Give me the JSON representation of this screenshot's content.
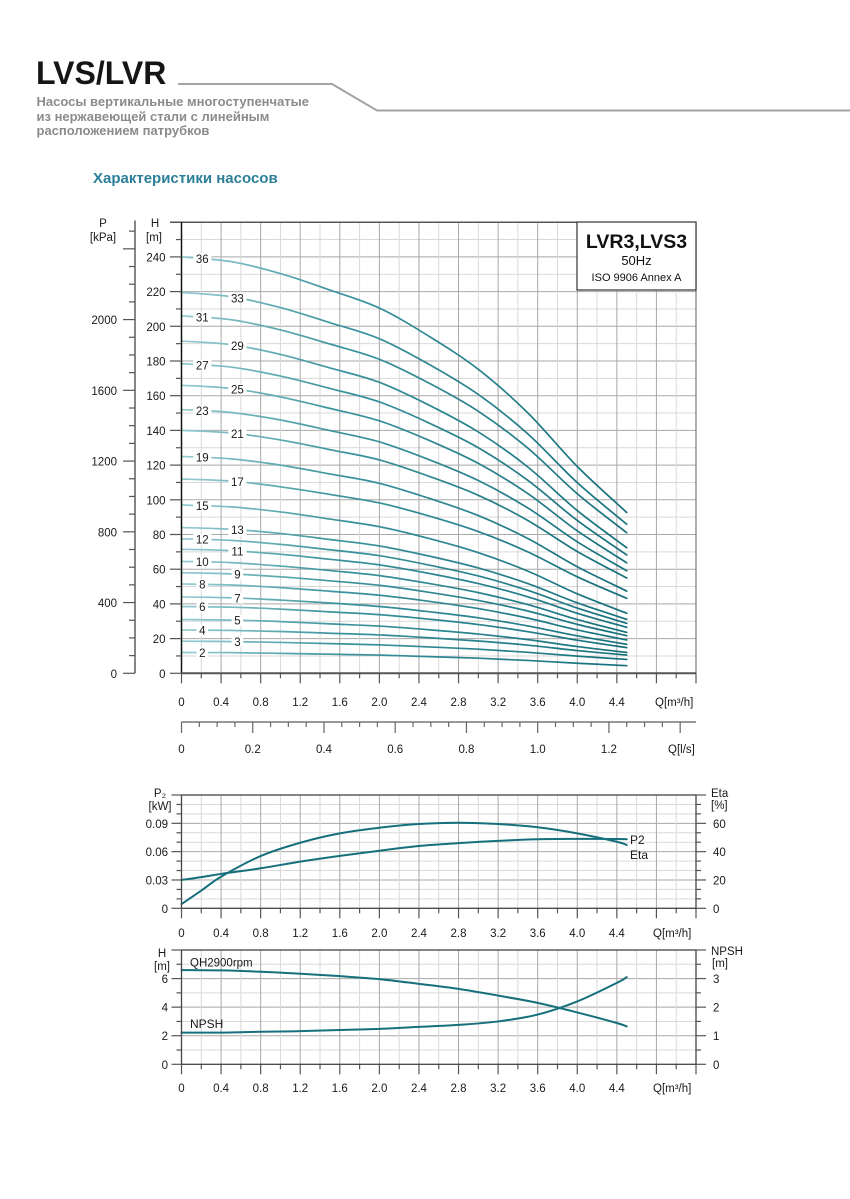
{
  "header": {
    "brand": "LVS/LVR",
    "subtitle_lines": [
      "Насосы вертикальные многоступенчатые",
      "из нержавеющей стали с линейным",
      "расположением патрубков"
    ],
    "section_title": "Характеристики насосов"
  },
  "colors": {
    "curve": "#16707c",
    "curve_mid": "#3c939d",
    "curve_light": "#95ccd2",
    "grid_major": "#a8a8a8",
    "grid_minor": "#d9d9d9",
    "section_title": "#2b7f98",
    "subtitle": "#8b8b8b",
    "header_rule": "#a3a3a3"
  },
  "chart_data": [
    {
      "type": "line",
      "title": "LVR3,LVS3",
      "frequency": "50Hz",
      "standard": "ISO 9906 Annex A",
      "ylabel": "H",
      "yunit": "[m]",
      "y2label": "P",
      "y2unit": "[kPa]",
      "xlabel": "Q[m³/h]",
      "x2label": "Q[l/s]",
      "xlim": [
        0,
        5.2
      ],
      "ylim": [
        0,
        260
      ],
      "grid": true,
      "x_ticks": [
        "0",
        "0.4",
        "0.8",
        "1.2",
        "1.6",
        "2.0",
        "2.4",
        "2.8",
        "3.2",
        "3.6",
        "4.0",
        "4.4"
      ],
      "x2_ticks": [
        "0",
        "0.2",
        "0.4",
        "0.6",
        "0.8",
        "1.0",
        "1.2"
      ],
      "y_ticks": [
        "0",
        "20",
        "40",
        "60",
        "80",
        "100",
        "120",
        "140",
        "160",
        "180",
        "200",
        "220",
        "240"
      ],
      "y2_ticks": [
        "0",
        "400",
        "800",
        "1200",
        "1600",
        "2000"
      ],
      "x": [
        0,
        0.5,
        1.0,
        1.5,
        2.0,
        2.5,
        3.0,
        3.5,
        4.0,
        4.5
      ],
      "series": [
        {
          "name": "2",
          "values": [
            12.0,
            11.9,
            11.5,
            11.0,
            10.5,
            9.6,
            8.7,
            7.4,
            5.8,
            4.4
          ]
        },
        {
          "name": "3",
          "values": [
            18.5,
            18.3,
            17.8,
            17.1,
            16.4,
            15.2,
            13.9,
            12.1,
            9.9,
            8.0
          ]
        },
        {
          "name": "4",
          "values": [
            25.0,
            24.7,
            24.1,
            23.1,
            22.1,
            20.5,
            18.6,
            16.2,
            13.1,
            10.5
          ]
        },
        {
          "name": "5",
          "values": [
            31.0,
            30.7,
            29.8,
            28.5,
            27.2,
            25.1,
            22.6,
            19.4,
            15.4,
            12.0
          ]
        },
        {
          "name": "6",
          "values": [
            38.5,
            38.1,
            37.0,
            35.4,
            33.8,
            31.2,
            28.1,
            24.0,
            19.1,
            14.8
          ]
        },
        {
          "name": "7",
          "values": [
            44.0,
            43.5,
            42.2,
            40.5,
            38.5,
            35.5,
            32.0,
            27.3,
            21.6,
            16.7
          ]
        },
        {
          "name": "8",
          "values": [
            51.5,
            50.9,
            49.4,
            47.3,
            45.0,
            41.5,
            37.3,
            31.8,
            25.0,
            19.2
          ]
        },
        {
          "name": "9",
          "values": [
            58.0,
            57.3,
            55.6,
            53.3,
            50.7,
            46.7,
            42.0,
            35.9,
            28.2,
            21.7
          ]
        },
        {
          "name": "10",
          "values": [
            64.5,
            63.8,
            61.8,
            59.2,
            56.3,
            51.8,
            46.5,
            39.6,
            31.0,
            23.6
          ]
        },
        {
          "name": "11",
          "values": [
            71.5,
            70.7,
            68.6,
            65.7,
            62.5,
            57.6,
            51.7,
            44.1,
            34.6,
            26.5
          ]
        },
        {
          "name": "12",
          "values": [
            77.5,
            76.6,
            74.3,
            71.2,
            67.8,
            62.4,
            56.1,
            47.8,
            37.6,
            28.8
          ]
        },
        {
          "name": "13",
          "values": [
            84.0,
            83.0,
            80.6,
            77.1,
            73.4,
            67.6,
            60.7,
            51.7,
            40.6,
            31.1
          ]
        },
        {
          "name": "15",
          "values": [
            97.0,
            95.9,
            93.0,
            88.9,
            84.5,
            77.7,
            69.5,
            58.9,
            45.8,
            34.6
          ]
        },
        {
          "name": "17",
          "values": [
            112.0,
            110.8,
            107.5,
            103.1,
            98.2,
            90.7,
            81.7,
            70.0,
            55.6,
            43.2
          ]
        },
        {
          "name": "19",
          "values": [
            125.0,
            123.6,
            120.0,
            114.9,
            109.5,
            100.9,
            90.9,
            77.7,
            61.4,
            47.4
          ]
        },
        {
          "name": "21",
          "values": [
            140.0,
            138.5,
            134.5,
            128.9,
            123.0,
            113.6,
            102.6,
            88.1,
            70.2,
            54.9
          ]
        },
        {
          "name": "23",
          "values": [
            152.0,
            150.3,
            146.0,
            139.9,
            133.4,
            123.2,
            111.1,
            95.3,
            75.8,
            59.1
          ]
        },
        {
          "name": "25",
          "values": [
            166.0,
            164.2,
            159.3,
            152.7,
            145.5,
            134.3,
            121.0,
            103.6,
            82.1,
            63.7
          ]
        },
        {
          "name": "27",
          "values": [
            178.5,
            176.5,
            171.3,
            164.2,
            156.4,
            144.3,
            130.0,
            111.2,
            88.1,
            68.2
          ]
        },
        {
          "name": "29",
          "values": [
            191.5,
            189.4,
            183.8,
            176.0,
            167.7,
            154.6,
            139.1,
            118.9,
            93.8,
            72.4
          ]
        },
        {
          "name": "31",
          "values": [
            206.0,
            203.8,
            197.9,
            189.8,
            181.0,
            167.3,
            151.0,
            129.8,
            103.5,
            81.0
          ]
        },
        {
          "name": "33",
          "values": [
            219.5,
            217.1,
            210.8,
            202.1,
            192.8,
            178.1,
            160.7,
            138.0,
            109.9,
            85.9
          ]
        },
        {
          "name": "36",
          "values": [
            240.0,
            237.3,
            230.4,
            220.9,
            210.5,
            194.3,
            175.2,
            150.1,
            119.2,
            92.7
          ]
        }
      ]
    },
    {
      "type": "line",
      "ylabel": "P₂",
      "yunit": "[kW]",
      "y2label": "Eta",
      "y2unit": "[%]",
      "xlabel": "Q[m³/h]",
      "xlim": [
        0,
        5.2
      ],
      "ylim": [
        0,
        0.12
      ],
      "y2lim": [
        0,
        80
      ],
      "grid": true,
      "x_ticks": [
        "0",
        "0.4",
        "0.8",
        "1.2",
        "1.6",
        "2.0",
        "2.4",
        "2.8",
        "3.2",
        "3.6",
        "4.0",
        "4.4"
      ],
      "y_ticks": [
        "0",
        "0.03",
        "0.06",
        "0.09"
      ],
      "y2_ticks": [
        "0",
        "20",
        "40",
        "60"
      ],
      "x": [
        0,
        0.2,
        0.4,
        0.8,
        1.2,
        1.6,
        2.0,
        2.4,
        2.8,
        3.2,
        3.6,
        4.0,
        4.4,
        4.5
      ],
      "series": [
        {
          "name": "P2",
          "axis": "left",
          "values": [
            0.03,
            0.033,
            0.0364,
            0.0424,
            0.0494,
            0.0555,
            0.061,
            0.066,
            0.069,
            0.0714,
            0.0731,
            0.0735,
            0.0734,
            0.0732
          ]
        },
        {
          "name": "Eta",
          "axis": "right",
          "values": [
            3.0,
            12.5,
            22.3,
            36.9,
            46.3,
            52.9,
            56.9,
            59.5,
            60.4,
            59.5,
            57.2,
            52.9,
            47.0,
            44.7
          ]
        }
      ]
    },
    {
      "type": "line",
      "ylabel": "H",
      "yunit": "[m]",
      "y2label": "NPSH",
      "y2unit": "[m]",
      "xlabel": "Q[m³/h]",
      "xlim": [
        0,
        5.2
      ],
      "ylim": [
        0,
        8
      ],
      "y2lim": [
        0,
        4
      ],
      "grid": true,
      "x_ticks": [
        "0",
        "0.4",
        "0.8",
        "1.2",
        "1.6",
        "2.0",
        "2.4",
        "2.8",
        "3.2",
        "3.6",
        "4.0",
        "4.4"
      ],
      "y_ticks": [
        "0",
        "2",
        "4",
        "6"
      ],
      "y2_ticks": [
        "0",
        "1",
        "2",
        "3"
      ],
      "x": [
        0,
        0.4,
        0.8,
        1.2,
        1.6,
        2.0,
        2.4,
        2.8,
        3.2,
        3.6,
        4.0,
        4.4,
        4.5
      ],
      "series": [
        {
          "name": "QH2900rpm",
          "axis": "left",
          "values": [
            6.59,
            6.57,
            6.48,
            6.34,
            6.17,
            5.96,
            5.63,
            5.28,
            4.81,
            4.3,
            3.63,
            2.89,
            2.65
          ]
        },
        {
          "name": "NPSH",
          "axis": "right",
          "values": [
            1.11,
            1.11,
            1.14,
            1.16,
            1.2,
            1.24,
            1.31,
            1.38,
            1.5,
            1.74,
            2.2,
            2.85,
            3.05
          ]
        }
      ]
    }
  ]
}
